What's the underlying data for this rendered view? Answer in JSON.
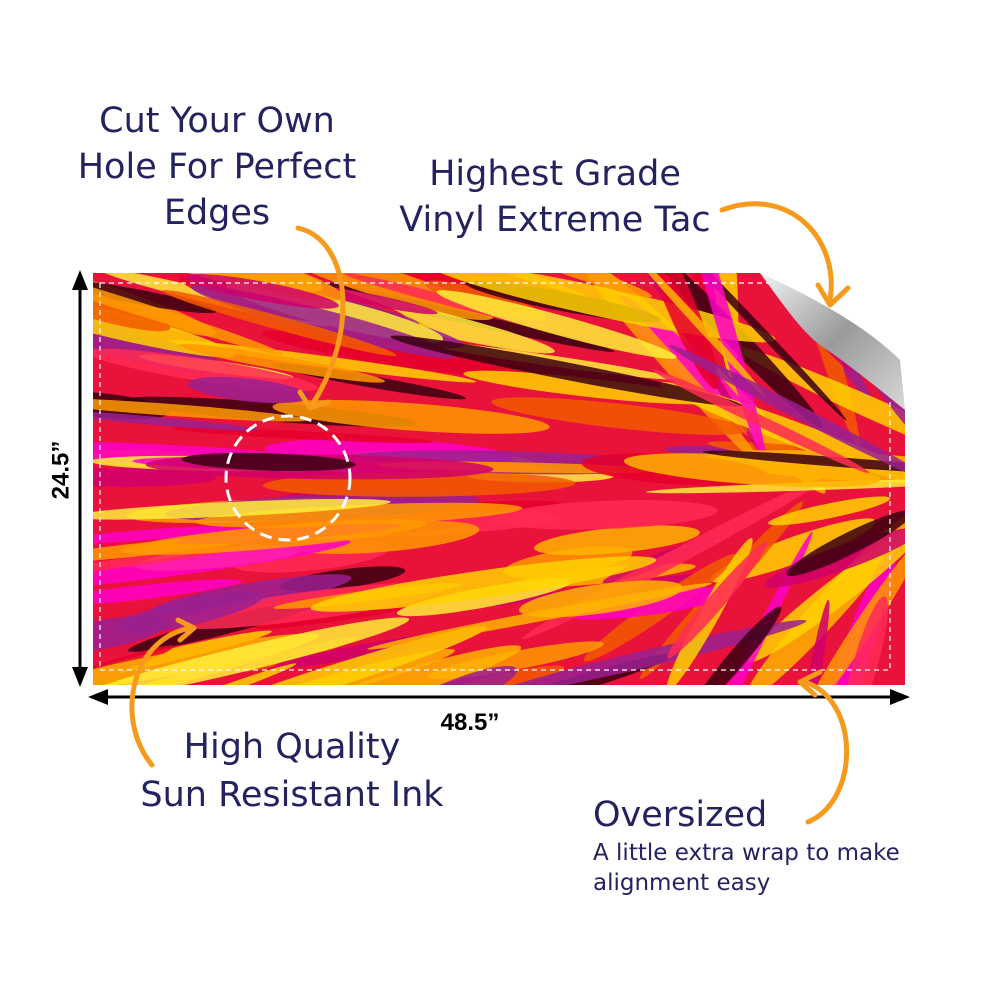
{
  "callouts": [
    {
      "lines": [
        "Cut Your Own",
        "Hole For Perfect",
        "Edges"
      ]
    },
    {
      "lines": [
        "Highest Grade",
        "Vinyl Extreme Tac"
      ]
    },
    {
      "lines": [
        "High Quality",
        "Sun Resistant Ink"
      ]
    },
    {
      "lines": [
        "Oversized"
      ],
      "detail": [
        "A little extra wrap to make",
        "alignment easy"
      ]
    }
  ],
  "dimensions": {
    "height": "24.5”",
    "width": "48.5”"
  }
}
